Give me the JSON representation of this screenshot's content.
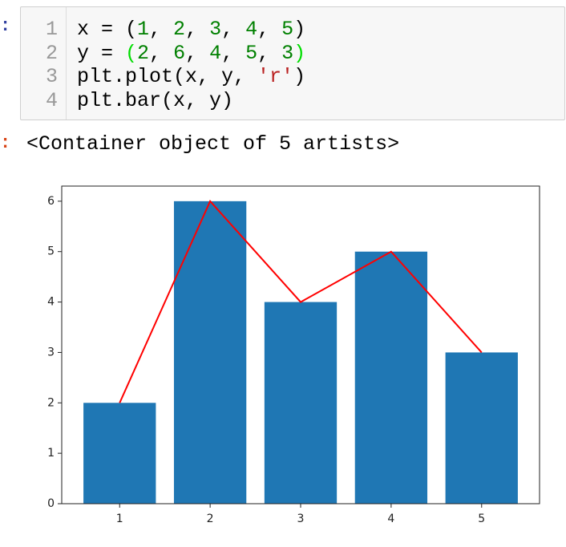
{
  "cell": {
    "in_prompt": ":",
    "out_prompt": ":",
    "code": [
      {
        "number": "1",
        "tokens": [
          {
            "text": "x = (",
            "color": "#000000"
          },
          {
            "text": "1",
            "color": "#008000"
          },
          {
            "text": ", ",
            "color": "#000000"
          },
          {
            "text": "2",
            "color": "#008000"
          },
          {
            "text": ", ",
            "color": "#000000"
          },
          {
            "text": "3",
            "color": "#008000"
          },
          {
            "text": ", ",
            "color": "#000000"
          },
          {
            "text": "4",
            "color": "#008000"
          },
          {
            "text": ", ",
            "color": "#000000"
          },
          {
            "text": "5",
            "color": "#008000"
          },
          {
            "text": ")",
            "color": "#000000"
          }
        ]
      },
      {
        "number": "2",
        "tokens": [
          {
            "text": "y = ",
            "color": "#000000"
          },
          {
            "text": "(",
            "color": "#00dd00"
          },
          {
            "text": "2",
            "color": "#008000"
          },
          {
            "text": ", ",
            "color": "#000000"
          },
          {
            "text": "6",
            "color": "#008000"
          },
          {
            "text": ", ",
            "color": "#000000"
          },
          {
            "text": "4",
            "color": "#008000"
          },
          {
            "text": ", ",
            "color": "#000000"
          },
          {
            "text": "5",
            "color": "#008000"
          },
          {
            "text": ", ",
            "color": "#000000"
          },
          {
            "text": "3",
            "color": "#008000"
          },
          {
            "text": ")",
            "color": "#00dd00"
          }
        ]
      },
      {
        "number": "3",
        "tokens": [
          {
            "text": "plt.plot(x, y, ",
            "color": "#000000"
          },
          {
            "text": "'r'",
            "color": "#ba2121"
          },
          {
            "text": ")",
            "color": "#000000"
          }
        ]
      },
      {
        "number": "4",
        "tokens": [
          {
            "text": "plt.bar(x, y)",
            "color": "#000000"
          }
        ]
      }
    ],
    "output": "<Container object of 5 artists>"
  },
  "chart_data": {
    "type": "bar",
    "x": [
      1,
      2,
      3,
      4,
      5
    ],
    "series": [
      {
        "type": "bar",
        "color": "#1f77b4",
        "values": [
          2,
          6,
          4,
          5,
          3
        ]
      },
      {
        "type": "line",
        "color": "#ff0000",
        "values": [
          2,
          6,
          4,
          5,
          3
        ]
      }
    ],
    "xlim": [
      0.36,
      5.64
    ],
    "xticks": [
      1,
      2,
      3,
      4,
      5
    ],
    "ylim": [
      0,
      6.3
    ],
    "yticks": [
      0,
      1,
      2,
      3,
      4,
      5,
      6
    ]
  }
}
